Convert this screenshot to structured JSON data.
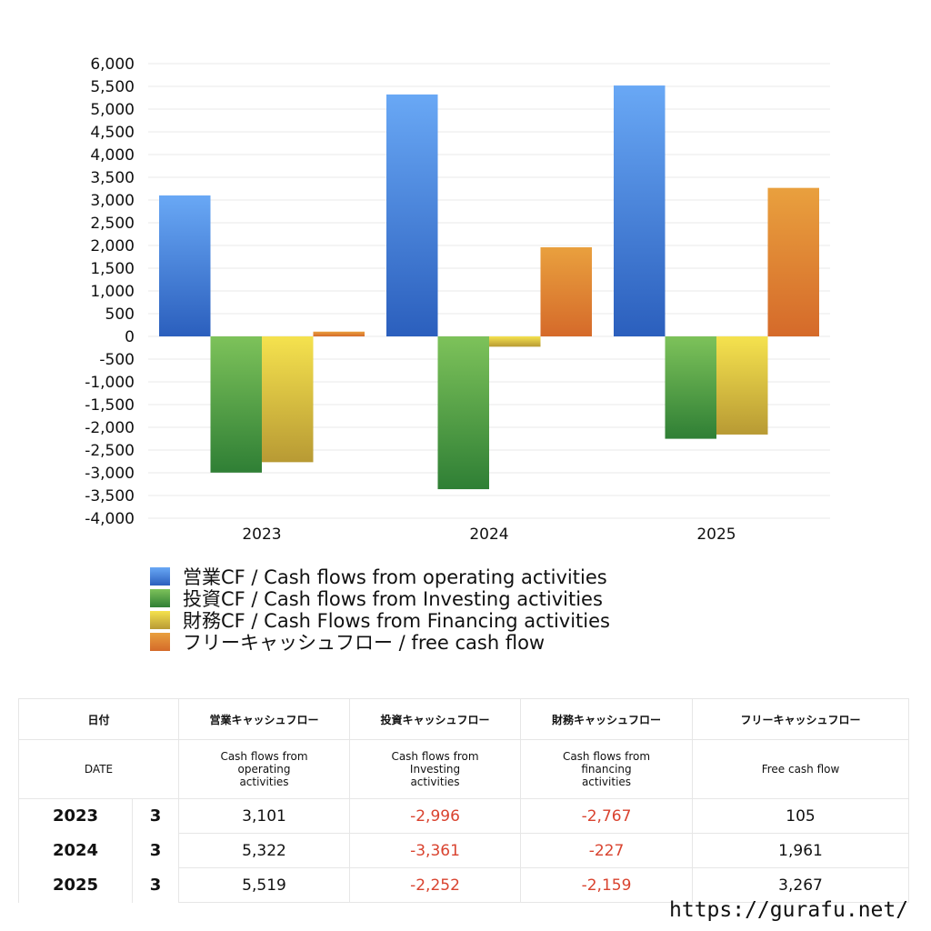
{
  "chart_data": {
    "type": "bar",
    "categories": [
      "2023",
      "2024",
      "2025"
    ],
    "ylim": [
      -4000,
      6000
    ],
    "ytick_step": 500,
    "yticks": [
      "6,000",
      "5,500",
      "5,000",
      "4,500",
      "4,000",
      "3,500",
      "3,000",
      "2,500",
      "2,000",
      "1,500",
      "1,000",
      "500",
      "0",
      "-500",
      "-1,000",
      "-1,500",
      "-2,000",
      "-2,500",
      "-3,000",
      "-3,500",
      "-4,000"
    ],
    "grid": true,
    "legend_position": "bottom",
    "series": [
      {
        "name": "営業CF / Cash flows from operating activities",
        "values": [
          3101,
          5322,
          5519
        ],
        "color_top": "#69a8f5",
        "color_bottom": "#2b5fbd"
      },
      {
        "name": "投資CF / Cash flows from Investing activities",
        "values": [
          -2996,
          -3361,
          -2252
        ],
        "color_top": "#7dc25a",
        "color_bottom": "#2f7f35"
      },
      {
        "name": "財務CF / Cash Flows from Financing activities",
        "values": [
          -2767,
          -227,
          -2159
        ],
        "color_top": "#f5e24e",
        "color_bottom": "#b89a34"
      },
      {
        "name": "フリーキャッシュフロー / free cash flow",
        "values": [
          105,
          1961,
          3267
        ],
        "color_top": "#e9a03e",
        "color_bottom": "#d56a2a"
      }
    ]
  },
  "table": {
    "header_jp": [
      "日付",
      "",
      "営業キャッシュフロー",
      "投資キャッシュフロー",
      "財務キャッシュフロー",
      "フリーキャッシュフロー"
    ],
    "header_en": [
      "DATE",
      "",
      "Cash flows from operating activities",
      "Cash flows from Investing activities",
      "Cash flows from financing activities",
      "Free cash flow"
    ],
    "rows": [
      [
        "2023",
        "3",
        "3,101",
        "-2,996",
        "-2,767",
        "105"
      ],
      [
        "2024",
        "3",
        "5,322",
        "-3,361",
        "-227",
        "1,961"
      ],
      [
        "2025",
        "3",
        "5,519",
        "-2,252",
        "-2,159",
        "3,267"
      ]
    ]
  },
  "footer": {
    "url": "https://gurafu.net/"
  }
}
